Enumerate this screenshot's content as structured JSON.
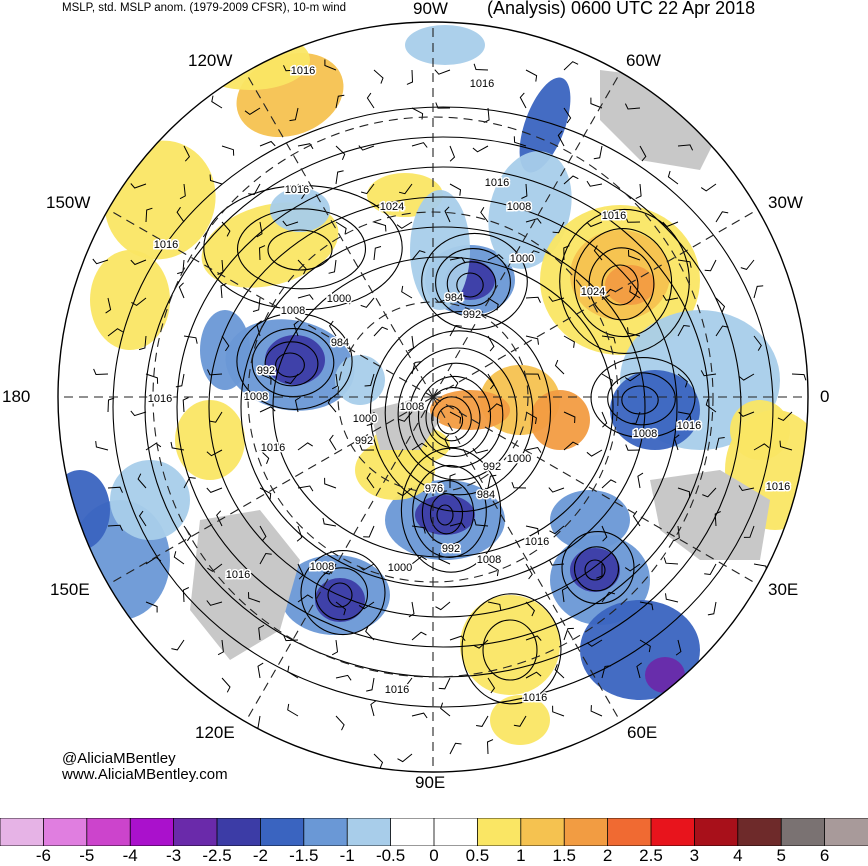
{
  "header": {
    "left": "MSLP, std. MSLP anom. (1979-2009 CFSR), 10-m wind",
    "right": "(Analysis) 0600 UTC 22 Apr 2018"
  },
  "longitudes": {
    "top": "90W",
    "top_left": "120W",
    "top_right": "60W",
    "left_upper": "150W",
    "right_upper": "30W",
    "left": "180",
    "right": "0",
    "left_lower": "150E",
    "right_lower": "30E",
    "bottom_left": "120E",
    "bottom_right": "60E",
    "bottom": "90E"
  },
  "credits": {
    "handle": "@AliciaMBentley",
    "site": "www.AliciaMBentley.com"
  },
  "contour_labels": [
    "1016",
    "1016",
    "1016",
    "1016",
    "1024",
    "1016",
    "1008",
    "1016",
    "1000",
    "1024",
    "984",
    "992",
    "1000",
    "1008",
    "984",
    "992",
    "1008",
    "1016",
    "1000",
    "1008",
    "992",
    "1016",
    "1008",
    "1000",
    "1016",
    "976",
    "992",
    "984",
    "992",
    "1008",
    "1000",
    "1016",
    "1008",
    "1016",
    "1016",
    "1016",
    "1016"
  ],
  "colorbar": {
    "ticks": [
      "-6",
      "-5",
      "-4",
      "-3",
      "-2.5",
      "-2",
      "-1.5",
      "-1",
      "-0.5",
      "0",
      "0.5",
      "1",
      "1.5",
      "2",
      "2.5",
      "3",
      "4",
      "5",
      "6"
    ],
    "colors": [
      "#e6b3e6",
      "#e07ee0",
      "#cc44cc",
      "#aa11cc",
      "#6a2aaa",
      "#3c3ca6",
      "#3a64c0",
      "#6a98d6",
      "#a8cdea",
      "#ffffff",
      "#ffffff",
      "#fae664",
      "#f5c250",
      "#f29c42",
      "#f06a32",
      "#e8141c",
      "#a8101a",
      "#6e2a2a",
      "#7a7272",
      "#a89a9a"
    ]
  },
  "colors": {
    "land_gray": "#c8c8c8",
    "contour": "#000000",
    "grid": "#333333"
  }
}
